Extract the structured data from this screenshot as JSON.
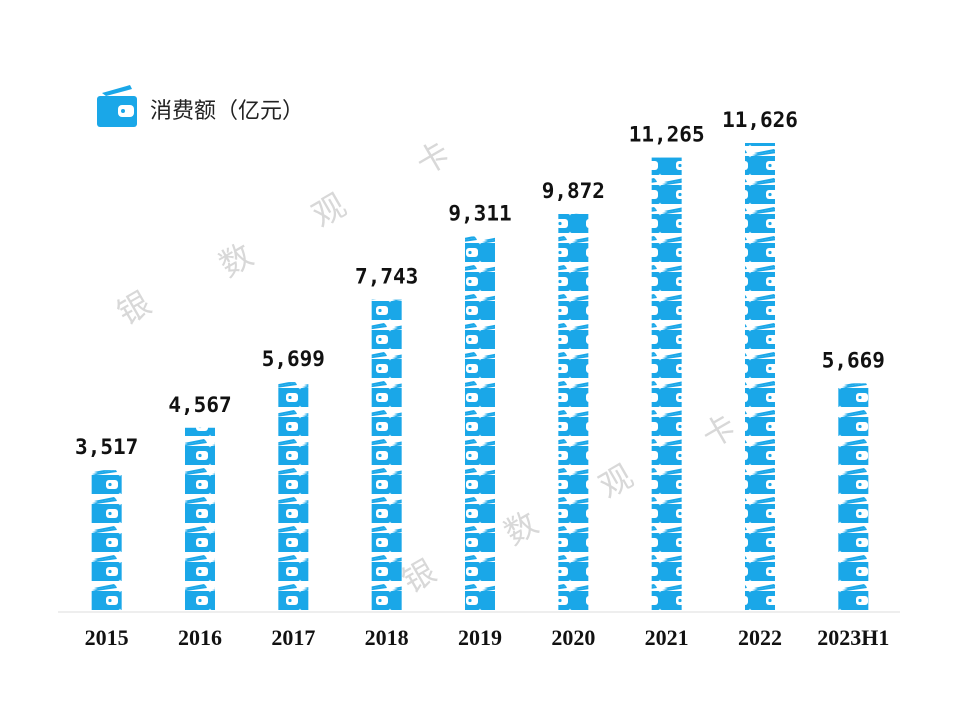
{
  "chart_data": {
    "type": "bar",
    "series_name": "消费额（亿元）",
    "color": "#1aa7e8",
    "categories": [
      "2015",
      "2016",
      "2017",
      "2018",
      "2019",
      "2020",
      "2021",
      "2022",
      "2023H1"
    ],
    "values": [
      3517,
      4567,
      5699,
      7743,
      9311,
      9872,
      11265,
      11626,
      5669
    ],
    "value_labels": [
      "3,517",
      "4,567",
      "5,699",
      "7,743",
      "9,311",
      "9,872",
      "11,265",
      "11,626",
      "5,669"
    ],
    "watermark": [
      "银",
      "数",
      "观",
      "卡"
    ]
  }
}
